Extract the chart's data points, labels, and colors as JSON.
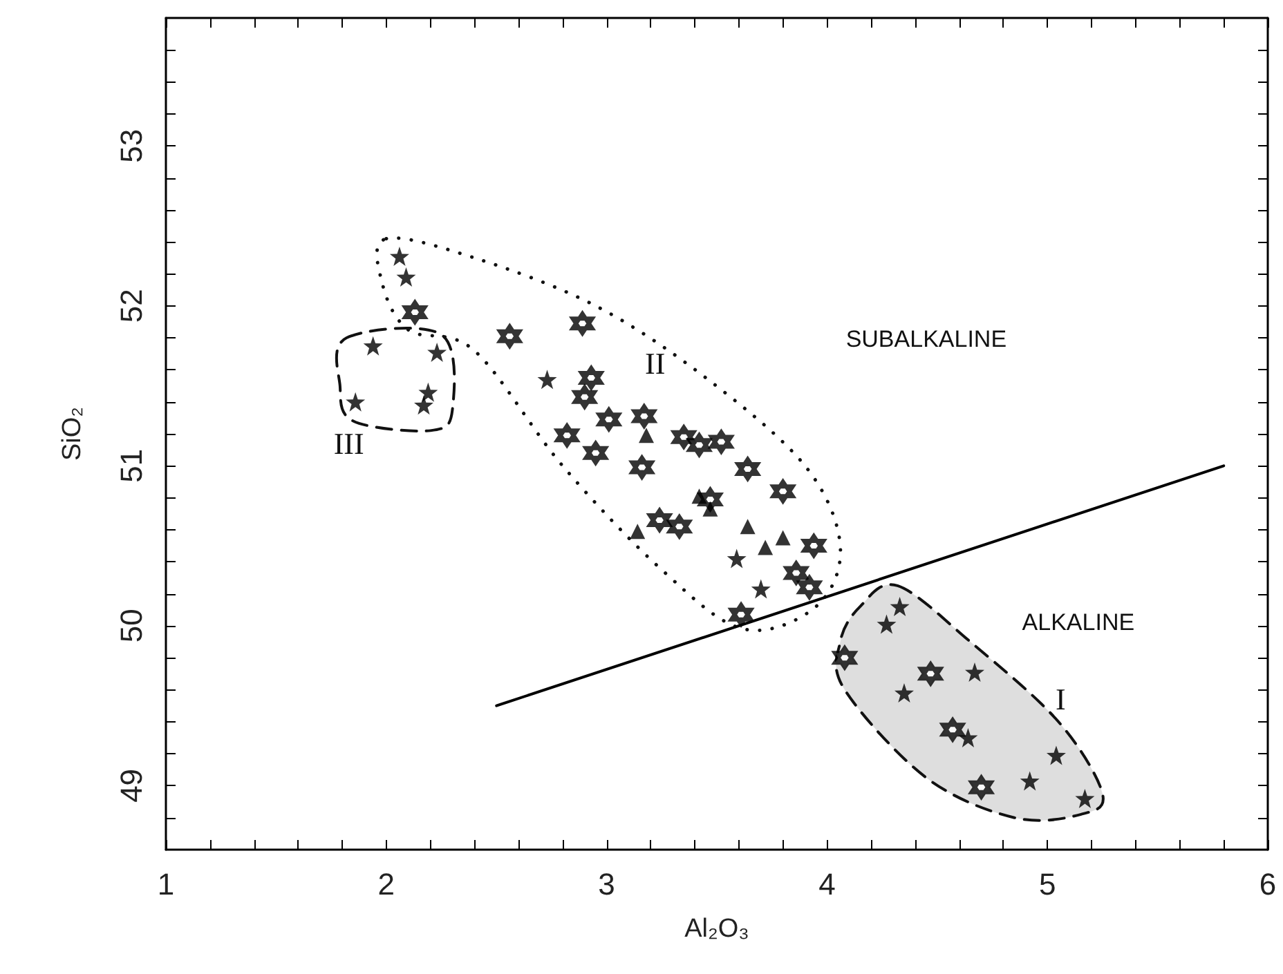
{
  "chart_data": {
    "type": "scatter",
    "xlabel": "Al₂O₃",
    "ylabel": "SiO₂",
    "xlim": [
      1,
      6
    ],
    "ylim": [
      48.6,
      53.8
    ],
    "xticks": [
      1,
      {
        "value": 1.2,
        "label": null
      },
      {
        "value": 1.4,
        "label": null
      },
      {
        "value": 1.6,
        "label": null
      },
      {
        "value": 1.8,
        "label": null
      },
      2,
      {
        "value": 2.2,
        "label": null
      },
      {
        "value": 2.4,
        "label": null
      },
      {
        "value": 2.6,
        "label": null
      },
      {
        "value": 2.8,
        "label": null
      },
      3,
      {
        "value": 3.2,
        "label": null
      },
      {
        "value": 3.4,
        "label": null
      },
      {
        "value": 3.6,
        "label": null
      },
      {
        "value": 3.8,
        "label": null
      },
      4,
      {
        "value": 4.2,
        "label": null
      },
      {
        "value": 4.4,
        "label": null
      },
      {
        "value": 4.6,
        "label": null
      },
      {
        "value": 4.8,
        "label": null
      },
      5,
      {
        "value": 5.2,
        "label": null
      },
      {
        "value": 5.4,
        "label": null
      },
      {
        "value": 5.6,
        "label": null
      },
      {
        "value": 5.8,
        "label": null
      },
      6
    ],
    "yticks": [
      {
        "value": 48.8,
        "label": null
      },
      49,
      {
        "value": 49.2,
        "label": null
      },
      {
        "value": 49.4,
        "label": null
      },
      {
        "value": 49.6,
        "label": null
      },
      {
        "value": 49.8,
        "label": null
      },
      50,
      {
        "value": 50.2,
        "label": null
      },
      {
        "value": 50.4,
        "label": null
      },
      {
        "value": 50.6,
        "label": null
      },
      {
        "value": 50.8,
        "label": null
      },
      51,
      {
        "value": 51.2,
        "label": null
      },
      {
        "value": 51.4,
        "label": null
      },
      {
        "value": 51.6,
        "label": null
      },
      {
        "value": 51.8,
        "label": null
      },
      52,
      {
        "value": 52.2,
        "label": null
      },
      {
        "value": 52.4,
        "label": null
      },
      {
        "value": 52.6,
        "label": null
      },
      {
        "value": 52.8,
        "label": null
      },
      53,
      {
        "value": 53.2,
        "label": null
      },
      {
        "value": 53.4,
        "label": null
      },
      {
        "value": 53.6,
        "label": null
      }
    ],
    "grid": false,
    "series": [
      {
        "marker": "star",
        "color": "#000000",
        "x": [
          2.06,
          2.09,
          1.94,
          2.23,
          1.86,
          2.19,
          2.17,
          2.73,
          3.59,
          3.7,
          4.33,
          4.27,
          4.67,
          4.35,
          4.64,
          5.04,
          4.92,
          5.17
        ],
        "values": [
          52.31,
          52.18,
          51.75,
          51.71,
          51.4,
          51.46,
          51.38,
          51.54,
          50.42,
          50.23,
          50.12,
          50.01,
          49.71,
          49.58,
          49.3,
          49.19,
          49.03,
          48.92
        ]
      },
      {
        "color": "#000000",
        "x": [
          2.13,
          2.56,
          2.89,
          2.93,
          2.9,
          3.01,
          2.82,
          2.95,
          3.17,
          3.16,
          3.35,
          3.42,
          3.52,
          3.64,
          3.8,
          3.47,
          3.24,
          3.33,
          3.94,
          3.86,
          3.92,
          3.61,
          4.08,
          4.47,
          4.57,
          4.7
        ],
        "values": [
          51.96,
          51.81,
          51.89,
          51.55,
          51.43,
          51.29,
          51.19,
          51.08,
          51.31,
          50.99,
          51.18,
          51.13,
          51.15,
          50.98,
          50.84,
          50.79,
          50.66,
          50.62,
          50.5,
          50.33,
          50.24,
          50.07,
          49.8,
          49.7,
          49.35,
          48.99
        ]
      },
      {
        "marker": "triangle",
        "color": "#000000",
        "x": [
          3.18,
          3.42,
          3.47,
          3.14,
          3.64,
          3.72,
          3.8
        ],
        "values": [
          51.19,
          50.81,
          50.73,
          50.59,
          50.62,
          50.49,
          50.55
        ]
      },
      {
        "type": "line",
        "marker": "none",
        "line_style": "solid",
        "color": "#000000",
        "x": [
          2.5,
          5.8
        ],
        "values": [
          49.5,
          51.0
        ]
      }
    ],
    "annotations": [
      "SUBALKALINE",
      "ALKALINE",
      "I",
      "II",
      "III"
    ]
  }
}
